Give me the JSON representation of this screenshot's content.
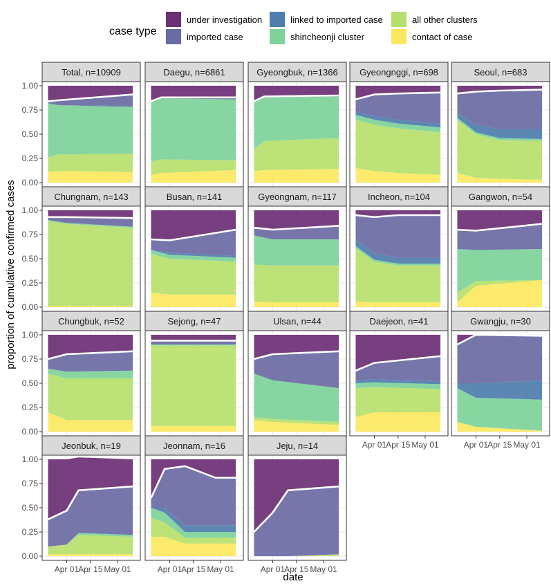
{
  "colors": {
    "under_investigation": "#6b2f74",
    "imported_case": "#6a6aa4",
    "linked_to_imported_case": "#4f7dad",
    "shincheonji_cluster": "#7dd39a",
    "all_other_clusters": "#b6e06c",
    "contact_of_case": "#fbe85f",
    "line": "#ffffff",
    "strip": "#d9d9d9"
  },
  "chart_data": {
    "type": "area",
    "legend": {
      "title": "case type",
      "position": "top",
      "entries": [
        {
          "key": "under_investigation",
          "label": "under investigation"
        },
        {
          "key": "imported_case",
          "label": "imported case"
        },
        {
          "key": "linked_to_imported_case",
          "label": "linked to imported case"
        },
        {
          "key": "shincheonji_cluster",
          "label": "shincheonji cluster"
        },
        {
          "key": "all_other_clusters",
          "label": "all other clusters"
        },
        {
          "key": "contact_of_case",
          "label": "contact of case"
        }
      ]
    },
    "stack_order_bottom_to_top": [
      "contact_of_case",
      "all_other_clusters",
      "shincheonji_cluster",
      "linked_to_imported_case",
      "imported_case",
      "under_investigation"
    ],
    "xlabel": "date",
    "ylabel": "proportion of cumulative confirmed cases",
    "x_ticks": [
      "Apr 01",
      "Apr 15",
      "May 01"
    ],
    "xlim": [
      "2020-03-20",
      "2020-05-12"
    ],
    "y_ticks": [
      "0.00",
      "0.25",
      "0.50",
      "0.75",
      "1.00"
    ],
    "ylim": [
      0,
      1
    ],
    "grid": true,
    "facets": [
      {
        "label": "Total, n=10909",
        "x": [
          "2020-03-21",
          "2020-03-27",
          "2020-05-10"
        ],
        "contact_of_case": [
          0.11,
          0.12,
          0.11
        ],
        "all_other_clusters": [
          0.15,
          0.17,
          0.19
        ],
        "shincheonji_cluster": [
          0.56,
          0.51,
          0.48
        ],
        "linked_to_imported_case": [
          0,
          0,
          0.01
        ],
        "imported_case": [
          0.02,
          0.05,
          0.12
        ],
        "under_investigation": [
          0.16,
          0.15,
          0.09
        ]
      },
      {
        "label": "Daegu, n=6861",
        "x": [
          "2020-03-21",
          "2020-03-27",
          "2020-05-10"
        ],
        "contact_of_case": [
          0.08,
          0.1,
          0.13
        ],
        "all_other_clusters": [
          0.14,
          0.14,
          0.1
        ],
        "shincheonji_cluster": [
          0.62,
          0.63,
          0.63
        ],
        "linked_to_imported_case": [
          0,
          0,
          0
        ],
        "imported_case": [
          0,
          0.01,
          0.02
        ],
        "under_investigation": [
          0.16,
          0.12,
          0.12
        ]
      },
      {
        "label": "Gyeongbuk, n=1366",
        "x": [
          "2020-03-21",
          "2020-03-27",
          "2020-05-10"
        ],
        "contact_of_case": [
          0.12,
          0.13,
          0.14
        ],
        "all_other_clusters": [
          0.22,
          0.3,
          0.32
        ],
        "shincheonji_cluster": [
          0.5,
          0.45,
          0.43
        ],
        "linked_to_imported_case": [
          0,
          0,
          0
        ],
        "imported_case": [
          0,
          0.01,
          0.01
        ],
        "under_investigation": [
          0.16,
          0.11,
          0.1
        ]
      },
      {
        "label": "Gyeongnggi, n=698",
        "x": [
          "2020-03-21",
          "2020-04-01",
          "2020-04-15",
          "2020-05-10"
        ],
        "contact_of_case": [
          0.15,
          0.12,
          0.1,
          0.08
        ],
        "all_other_clusters": [
          0.5,
          0.48,
          0.46,
          0.44
        ],
        "shincheonji_cluster": [
          0.05,
          0.05,
          0.05,
          0.05
        ],
        "linked_to_imported_case": [
          0.03,
          0.04,
          0.04,
          0.04
        ],
        "imported_case": [
          0.13,
          0.22,
          0.27,
          0.32
        ],
        "under_investigation": [
          0.14,
          0.09,
          0.08,
          0.07
        ]
      },
      {
        "label": "Seoul, n=683",
        "x": [
          "2020-03-21",
          "2020-04-01",
          "2020-04-15",
          "2020-05-10"
        ],
        "contact_of_case": [
          0.1,
          0.05,
          0.04,
          0.03
        ],
        "all_other_clusters": [
          0.55,
          0.45,
          0.4,
          0.4
        ],
        "shincheonji_cluster": [
          0.02,
          0.02,
          0.02,
          0.02
        ],
        "linked_to_imported_case": [
          0.05,
          0.08,
          0.09,
          0.1
        ],
        "imported_case": [
          0.2,
          0.34,
          0.4,
          0.41
        ],
        "under_investigation": [
          0.08,
          0.06,
          0.05,
          0.04
        ]
      },
      {
        "label": "Chungnam, n=143",
        "x": [
          "2020-03-21",
          "2020-04-01",
          "2020-05-10"
        ],
        "contact_of_case": [
          0.01,
          0.01,
          0.01
        ],
        "all_other_clusters": [
          0.88,
          0.85,
          0.81
        ],
        "shincheonji_cluster": [
          0.01,
          0.01,
          0.01
        ],
        "linked_to_imported_case": [
          0,
          0,
          0
        ],
        "imported_case": [
          0.03,
          0.06,
          0.09
        ],
        "under_investigation": [
          0.07,
          0.07,
          0.08
        ]
      },
      {
        "label": "Busan, n=141",
        "x": [
          "2020-03-21",
          "2020-04-01",
          "2020-05-10"
        ],
        "contact_of_case": [
          0.15,
          0.13,
          0.13
        ],
        "all_other_clusters": [
          0.4,
          0.37,
          0.34
        ],
        "shincheonji_cluster": [
          0.04,
          0.04,
          0.04
        ],
        "linked_to_imported_case": [
          0,
          0.02,
          0.02
        ],
        "imported_case": [
          0.11,
          0.13,
          0.27
        ],
        "under_investigation": [
          0.3,
          0.31,
          0.2
        ]
      },
      {
        "label": "Gyeongnam, n=117",
        "x": [
          "2020-03-21",
          "2020-04-01",
          "2020-05-10"
        ],
        "contact_of_case": [
          0.06,
          0.05,
          0.05
        ],
        "all_other_clusters": [
          0.38,
          0.38,
          0.38
        ],
        "shincheonji_cluster": [
          0.3,
          0.27,
          0.27
        ],
        "linked_to_imported_case": [
          0,
          0,
          0
        ],
        "imported_case": [
          0.08,
          0.1,
          0.14
        ],
        "under_investigation": [
          0.18,
          0.2,
          0.16
        ]
      },
      {
        "label": "Incheon, n=104",
        "x": [
          "2020-03-21",
          "2020-04-01",
          "2020-04-15",
          "2020-05-10"
        ],
        "contact_of_case": [
          0.06,
          0.05,
          0.05,
          0.05
        ],
        "all_other_clusters": [
          0.55,
          0.42,
          0.38,
          0.38
        ],
        "shincheonji_cluster": [
          0.02,
          0.02,
          0.02,
          0.02
        ],
        "linked_to_imported_case": [
          0.07,
          0.07,
          0.06,
          0.06
        ],
        "imported_case": [
          0.25,
          0.37,
          0.44,
          0.44
        ],
        "under_investigation": [
          0.05,
          0.07,
          0.05,
          0.05
        ]
      },
      {
        "label": "Gangwon, n=54",
        "x": [
          "2020-03-21",
          "2020-04-01",
          "2020-05-10"
        ],
        "contact_of_case": [
          0.05,
          0.22,
          0.28
        ],
        "all_other_clusters": [
          0.1,
          0.05,
          0
        ],
        "shincheonji_cluster": [
          0.45,
          0.32,
          0.32
        ],
        "linked_to_imported_case": [
          0,
          0,
          0
        ],
        "imported_case": [
          0.2,
          0.2,
          0.26
        ],
        "under_investigation": [
          0.2,
          0.21,
          0.14
        ]
      },
      {
        "label": "Chungbuk, n=52",
        "x": [
          "2020-03-21",
          "2020-04-01",
          "2020-05-10"
        ],
        "contact_of_case": [
          0.2,
          0.12,
          0.12
        ],
        "all_other_clusters": [
          0.4,
          0.43,
          0.43
        ],
        "shincheonji_cluster": [
          0.05,
          0.07,
          0.08
        ],
        "linked_to_imported_case": [
          0,
          0,
          0
        ],
        "imported_case": [
          0.1,
          0.18,
          0.2
        ],
        "under_investigation": [
          0.25,
          0.2,
          0.17
        ]
      },
      {
        "label": "Sejong, n=47",
        "x": [
          "2020-03-21",
          "2020-05-10"
        ],
        "contact_of_case": [
          0.06,
          0.06
        ],
        "all_other_clusters": [
          0.83,
          0.83
        ],
        "shincheonji_cluster": [
          0.01,
          0.01
        ],
        "linked_to_imported_case": [
          0,
          0
        ],
        "imported_case": [
          0.04,
          0.04
        ],
        "under_investigation": [
          0.06,
          0.06
        ]
      },
      {
        "label": "Ulsan, n=44",
        "x": [
          "2020-03-21",
          "2020-04-01",
          "2020-05-10"
        ],
        "contact_of_case": [
          0.12,
          0.1,
          0.07
        ],
        "all_other_clusters": [
          0.03,
          0.03,
          0.03
        ],
        "shincheonji_cluster": [
          0.45,
          0.4,
          0.35
        ],
        "linked_to_imported_case": [
          0,
          0,
          0
        ],
        "imported_case": [
          0.15,
          0.27,
          0.38
        ],
        "under_investigation": [
          0.25,
          0.2,
          0.17
        ]
      },
      {
        "label": "Daejeon, n=41",
        "x": [
          "2020-03-21",
          "2020-04-01",
          "2020-05-10"
        ],
        "contact_of_case": [
          0.15,
          0.2,
          0.2
        ],
        "all_other_clusters": [
          0.3,
          0.26,
          0.24
        ],
        "shincheonji_cluster": [
          0.05,
          0.05,
          0.05
        ],
        "linked_to_imported_case": [
          0.03,
          0.03,
          0.03
        ],
        "imported_case": [
          0.1,
          0.17,
          0.26
        ],
        "under_investigation": [
          0.37,
          0.29,
          0.22
        ]
      },
      {
        "label": "Gwangju, n=30",
        "x": [
          "2020-03-21",
          "2020-04-01",
          "2020-05-10"
        ],
        "contact_of_case": [
          0.1,
          0.05,
          0.01
        ],
        "all_other_clusters": [
          0,
          0,
          0
        ],
        "shincheonji_cluster": [
          0.35,
          0.3,
          0.32
        ],
        "linked_to_imported_case": [
          0.05,
          0.15,
          0.2
        ],
        "imported_case": [
          0.4,
          0.5,
          0.46
        ],
        "under_investigation": [
          0.1,
          0,
          0
        ]
      },
      {
        "label": "Jeonbuk, n=19",
        "x": [
          "2020-03-21",
          "2020-04-01",
          "2020-04-08",
          "2020-05-10"
        ],
        "contact_of_case": [
          0.02,
          0.02,
          0.02,
          0.02
        ],
        "all_other_clusters": [
          0.08,
          0.1,
          0.2,
          0.18
        ],
        "shincheonji_cluster": [
          0,
          0,
          0.02,
          0.02
        ],
        "linked_to_imported_case": [
          0,
          0,
          0,
          0
        ],
        "imported_case": [
          0.28,
          0.35,
          0.44,
          0.5
        ],
        "under_investigation": [
          0.62,
          0.53,
          0.34,
          0.28
        ]
      },
      {
        "label": "Jeonnam, n=16",
        "x": [
          "2020-03-21",
          "2020-03-29",
          "2020-04-10",
          "2020-04-28",
          "2020-05-10"
        ],
        "contact_of_case": [
          0.2,
          0.2,
          0.13,
          0.13,
          0.13
        ],
        "all_other_clusters": [
          0.2,
          0.15,
          0.06,
          0.06,
          0.06
        ],
        "shincheonji_cluster": [
          0.1,
          0.1,
          0.06,
          0.06,
          0.06
        ],
        "linked_to_imported_case": [
          0,
          0.05,
          0.07,
          0.07,
          0.07
        ],
        "imported_case": [
          0.1,
          0.4,
          0.61,
          0.49,
          0.49
        ],
        "under_investigation": [
          0.4,
          0.1,
          0.07,
          0.19,
          0.19
        ]
      },
      {
        "label": "Jeju, n=14",
        "x": [
          "2020-03-21",
          "2020-04-01",
          "2020-04-10",
          "2020-05-10"
        ],
        "contact_of_case": [
          0,
          0,
          0,
          0
        ],
        "all_other_clusters": [
          0,
          0,
          0,
          0.02
        ],
        "shincheonji_cluster": [
          0,
          0,
          0,
          0
        ],
        "linked_to_imported_case": [
          0,
          0,
          0,
          0
        ],
        "imported_case": [
          0.25,
          0.45,
          0.68,
          0.7
        ],
        "under_investigation": [
          0.75,
          0.55,
          0.32,
          0.28
        ]
      }
    ]
  }
}
